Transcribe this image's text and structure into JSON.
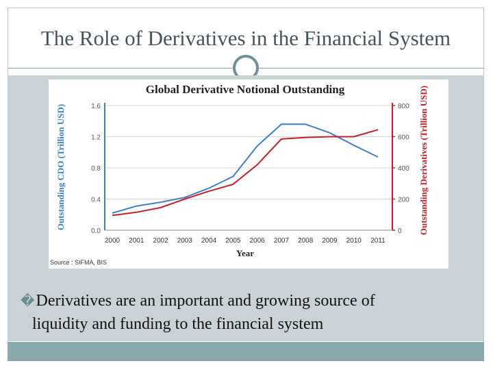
{
  "slide": {
    "title": "The Role of Derivatives in the Financial System",
    "bullet_marker": "�",
    "bullet_line1": "Derivatives are an important and growing source of",
    "bullet_line2": "liquidity and funding to the financial system"
  },
  "colors": {
    "title": "#44545c",
    "panel": "#c9d3d7",
    "bottom_bar": "#8aa9ae",
    "cdo_series": "#3a7fc8",
    "derivatives_series": "#c81d25",
    "left_axis": "#3a7fc8",
    "right_axis": "#c81d25"
  },
  "chart_data": {
    "type": "line",
    "title": "Global Derivative Notional Outstanding",
    "xlabel": "Year",
    "ylabel": "Outstanding CDO (Trillion USD)",
    "y2label": "Outstanding Derivatives (Trillion USD)",
    "source": "Source : SIFMA, BIS",
    "x": [
      "2000",
      "2001",
      "2002",
      "2003",
      "2004",
      "2005",
      "2006",
      "2007",
      "2008",
      "2009",
      "2010",
      "2011"
    ],
    "ylim": [
      0,
      1.6
    ],
    "y2lim": [
      0,
      800
    ],
    "yticks": [
      "0.0",
      "0.4",
      "0.8",
      "1.2",
      "1.6"
    ],
    "y2ticks": [
      "0",
      "200",
      "400",
      "600",
      "800"
    ],
    "legend": "none",
    "grid": "horizontal",
    "series": [
      {
        "axis": "left",
        "values": [
          0.22,
          0.31,
          0.36,
          0.42,
          0.54,
          0.69,
          1.08,
          1.36,
          1.36,
          1.25,
          1.09,
          0.94
        ]
      },
      {
        "axis": "right",
        "values": [
          95,
          115,
          145,
          200,
          250,
          295,
          420,
          585,
          595,
          600,
          600,
          645
        ]
      }
    ]
  }
}
